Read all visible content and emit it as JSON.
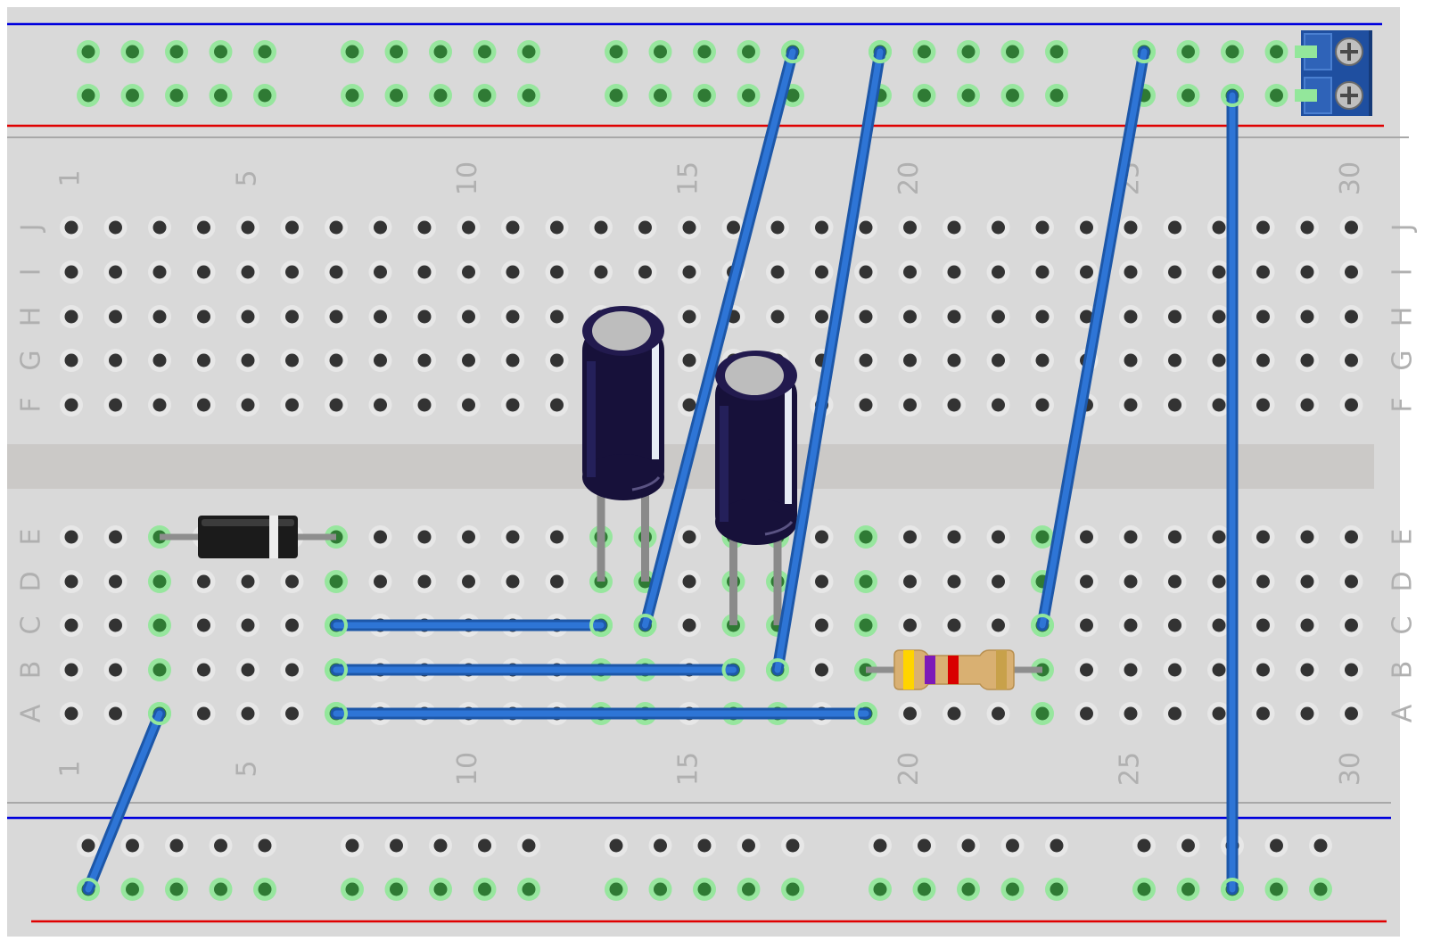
{
  "board": {
    "columns": 30,
    "row_letters_top": [
      "J",
      "I",
      "H",
      "G",
      "F"
    ],
    "row_letters_bottom": [
      "E",
      "D",
      "C",
      "B",
      "A"
    ],
    "column_numbers": [
      "1",
      "5",
      "10",
      "15",
      "20",
      "25",
      "30"
    ]
  },
  "colors": {
    "board": "#d9d9d9",
    "gutter": "#cbc9c7",
    "rail_blue": "#0000dd",
    "rail_red": "#e00000",
    "hole": "#333333",
    "connected": "#93e79b",
    "wire": "#2e75d6",
    "wire_edge": "#1d57a8",
    "capacitor": "#17113a",
    "diode": "#1b1b1b",
    "resistor": "#d9b072",
    "label": "#b0b0b0"
  },
  "components": {
    "capacitors": [
      {
        "id": "C1",
        "legs": [
          {
            "col": 13,
            "row": "D"
          },
          {
            "col": 14,
            "row": "D"
          }
        ]
      },
      {
        "id": "C2",
        "legs": [
          {
            "col": 16,
            "row": "C"
          },
          {
            "col": 17,
            "row": "C"
          }
        ]
      }
    ],
    "diode": {
      "from": {
        "col": 3,
        "row": "E"
      },
      "to": {
        "col": 7,
        "row": "E"
      }
    },
    "resistor": {
      "from": {
        "col": 19,
        "row": "B"
      },
      "to": {
        "col": 23,
        "row": "B"
      },
      "bands": [
        "#ffd400",
        "#7d1ab8",
        "#d90000",
        "#c8a14a"
      ]
    },
    "terminal_block": {
      "pins": 2
    }
  },
  "wires": [
    {
      "id": "w1",
      "from": {
        "col": 7,
        "row": "C"
      },
      "to": {
        "col": 13,
        "row": "C"
      }
    },
    {
      "id": "w2",
      "from": {
        "col": 7,
        "row": "B"
      },
      "to": {
        "col": 16,
        "row": "B"
      }
    },
    {
      "id": "w3",
      "from": {
        "col": 7,
        "row": "A"
      },
      "to": {
        "col": 19,
        "row": "A"
      }
    },
    {
      "id": "w4",
      "from": {
        "col": 14,
        "row": "C"
      },
      "to": {
        "rail": "top",
        "line": 1,
        "slot": 15
      }
    },
    {
      "id": "w5",
      "from": {
        "col": 17,
        "row": "B"
      },
      "to": {
        "rail": "top",
        "line": 1,
        "slot": 16
      }
    },
    {
      "id": "w6",
      "from": {
        "col": 23,
        "row": "C"
      },
      "to": {
        "rail": "top",
        "line": 1,
        "slot": 21
      }
    },
    {
      "id": "w7",
      "from": {
        "col": 3,
        "row": "A"
      },
      "to": {
        "rail": "bottom",
        "line": 2,
        "slot": 1
      }
    },
    {
      "id": "w8",
      "from": {
        "rail": "top",
        "line": 2,
        "slot": 23
      },
      "to": {
        "rail": "bottom",
        "line": 2,
        "slot": 23
      }
    }
  ]
}
